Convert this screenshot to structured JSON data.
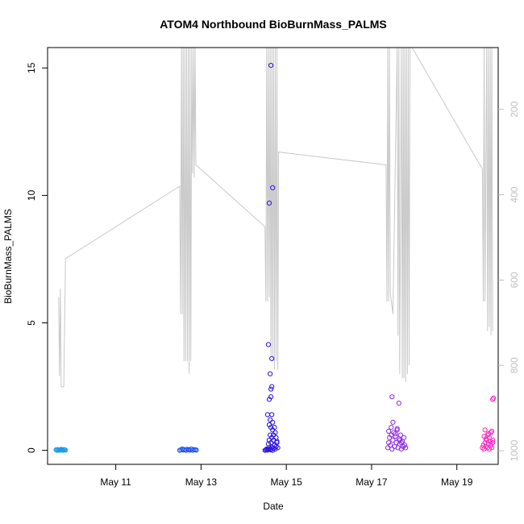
{
  "chart_data": {
    "type": "scatter",
    "title": "ATOM4 Northbound BioBurnMass_PALMS",
    "xlabel": "Date",
    "ylabel": "BioBurnMass_PALMS",
    "x_ticks": [
      "May 11",
      "May 13",
      "May 15",
      "May 17",
      "May 19"
    ],
    "x_tick_days": [
      11,
      13,
      15,
      17,
      19
    ],
    "xlim_days": [
      9.4,
      19.97
    ],
    "ylim": [
      -0.55,
      15.8
    ],
    "y_ticks": [
      0,
      5,
      10,
      15
    ],
    "y2_ticks": [
      200,
      400,
      600,
      800,
      1000
    ],
    "y2lim": [
      1032,
      55
    ],
    "grid": false,
    "legend": "none",
    "colors": {
      "line": "#c8c8c8",
      "day1": "#1e9be8",
      "day2": "#1b4ff0",
      "day3": "#2a10e0",
      "day4": "#8a2be2",
      "day5": "#ff1fbf"
    },
    "series": [
      {
        "color_key": "line",
        "kind": "line",
        "axis": "right",
        "x": [
          9.66,
          9.68,
          9.7,
          9.72,
          9.74,
          9.78,
          9.82,
          12.5,
          12.52,
          12.54,
          12.56,
          12.58,
          12.6,
          12.62,
          12.64,
          12.66,
          12.68,
          12.7,
          12.72,
          12.74,
          12.76,
          12.78,
          12.8,
          12.82,
          12.84,
          12.86,
          12.88,
          14.5,
          14.52,
          14.54,
          14.56,
          14.58,
          14.6,
          14.62,
          14.64,
          14.66,
          14.68,
          14.7,
          14.72,
          14.74,
          14.76,
          14.78,
          14.8,
          14.82,
          17.34,
          17.36,
          17.38,
          17.4,
          17.42,
          17.44,
          17.5,
          17.6,
          17.62,
          17.64,
          17.66,
          17.7,
          17.72,
          17.74,
          17.76,
          17.78,
          17.8,
          17.82,
          17.84,
          17.86,
          17.88,
          17.9,
          17.95,
          19.6,
          19.62,
          19.64,
          19.66,
          19.7,
          19.72,
          19.74,
          19.76,
          19.78,
          19.8,
          19.82,
          19.84
        ],
        "y": [
          640,
          825,
          620,
          850,
          850,
          850,
          550,
          380,
          680,
          55,
          680,
          55,
          790,
          55,
          790,
          55,
          790,
          55,
          820,
          55,
          790,
          55,
          350,
          55,
          360,
          55,
          330,
          475,
          650,
          55,
          650,
          55,
          640,
          55,
          780,
          55,
          790,
          55,
          810,
          55,
          790,
          55,
          810,
          300,
          330,
          650,
          55,
          650,
          55,
          630,
          680,
          55,
          730,
          55,
          820,
          55,
          830,
          55,
          830,
          55,
          840,
          55,
          820,
          55,
          800,
          55,
          55,
          340,
          650,
          55,
          650,
          55,
          720,
          55,
          710,
          55,
          730,
          55,
          720
        ]
      },
      {
        "name": "",
        "color_key": "day1",
        "x": [
          9.6,
          9.62,
          9.64,
          9.66,
          9.68,
          9.7,
          9.72,
          9.74,
          9.76,
          9.78,
          9.8,
          9.82
        ],
        "y": [
          0.02,
          0.0,
          0.03,
          0.01,
          0.0,
          0.02,
          0.04,
          0.01,
          0.0,
          0.03,
          0.02,
          0.01
        ]
      },
      {
        "name": "",
        "color_key": "day2",
        "x": [
          12.5,
          12.53,
          12.56,
          12.59,
          12.62,
          12.65,
          12.68,
          12.71,
          12.74,
          12.77,
          12.8,
          12.83,
          12.86,
          12.89
        ],
        "y": [
          0.0,
          0.02,
          0.05,
          0.01,
          0.03,
          0.0,
          0.04,
          0.02,
          0.01,
          0.05,
          0.0,
          0.03,
          0.02,
          0.01
        ]
      },
      {
        "name": "",
        "color_key": "day3",
        "x": [
          14.5,
          14.52,
          14.54,
          14.56,
          14.58,
          14.6,
          14.62,
          14.64,
          14.66,
          14.68,
          14.7,
          14.72,
          14.74,
          14.76,
          14.78,
          14.8,
          14.58,
          14.6,
          14.62,
          14.64,
          14.66,
          14.68,
          14.7,
          14.72,
          14.74,
          14.76,
          14.78,
          14.6,
          14.62,
          14.64,
          14.66,
          14.68,
          14.7,
          14.56,
          14.6,
          14.64,
          14.62,
          14.66,
          14.64,
          14.66,
          14.72,
          14.64,
          14.58,
          14.6,
          14.68
        ],
        "y": [
          0.0,
          0.02,
          0.05,
          0.01,
          0.03,
          0.1,
          0.05,
          0.02,
          0.12,
          0.0,
          0.08,
          0.2,
          0.05,
          0.15,
          0.3,
          0.1,
          0.25,
          0.4,
          0.6,
          0.3,
          0.5,
          0.8,
          0.4,
          0.2,
          0.7,
          0.5,
          0.35,
          1.0,
          1.2,
          0.9,
          1.4,
          1.1,
          0.6,
          1.4,
          2.0,
          2.4,
          3.0,
          3.6,
          2.1,
          2.5,
          0.9,
          15.1,
          4.15,
          9.7,
          10.3
        ]
      },
      {
        "name": "",
        "color_key": "day4",
        "x": [
          17.38,
          17.4,
          17.42,
          17.44,
          17.46,
          17.48,
          17.5,
          17.52,
          17.54,
          17.56,
          17.58,
          17.6,
          17.62,
          17.64,
          17.66,
          17.68,
          17.7,
          17.72,
          17.74,
          17.76,
          17.78,
          17.8,
          17.4,
          17.46,
          17.5,
          17.56,
          17.6,
          17.66,
          17.7,
          17.48,
          17.64
        ],
        "y": [
          0.1,
          0.3,
          0.5,
          0.2,
          0.6,
          0.05,
          0.4,
          0.7,
          0.15,
          0.55,
          0.3,
          0.8,
          0.1,
          0.45,
          0.25,
          0.6,
          0.05,
          0.35,
          0.15,
          0.5,
          0.2,
          0.1,
          0.75,
          0.9,
          1.1,
          0.65,
          0.85,
          0.4,
          0.3,
          2.1,
          1.85
        ]
      },
      {
        "name": "",
        "color_key": "day5",
        "x": [
          19.6,
          19.62,
          19.64,
          19.66,
          19.68,
          19.7,
          19.72,
          19.74,
          19.76,
          19.78,
          19.8,
          19.82,
          19.84,
          19.64,
          19.68,
          19.72,
          19.76,
          19.8,
          19.84,
          19.66,
          19.74,
          19.82,
          19.84,
          19.86
        ],
        "y": [
          0.1,
          0.2,
          0.05,
          0.3,
          0.15,
          0.4,
          0.1,
          0.25,
          0.05,
          0.35,
          0.2,
          0.1,
          0.3,
          0.55,
          0.45,
          0.6,
          0.5,
          0.7,
          0.4,
          0.8,
          0.65,
          0.75,
          2.0,
          2.05
        ]
      }
    ]
  }
}
